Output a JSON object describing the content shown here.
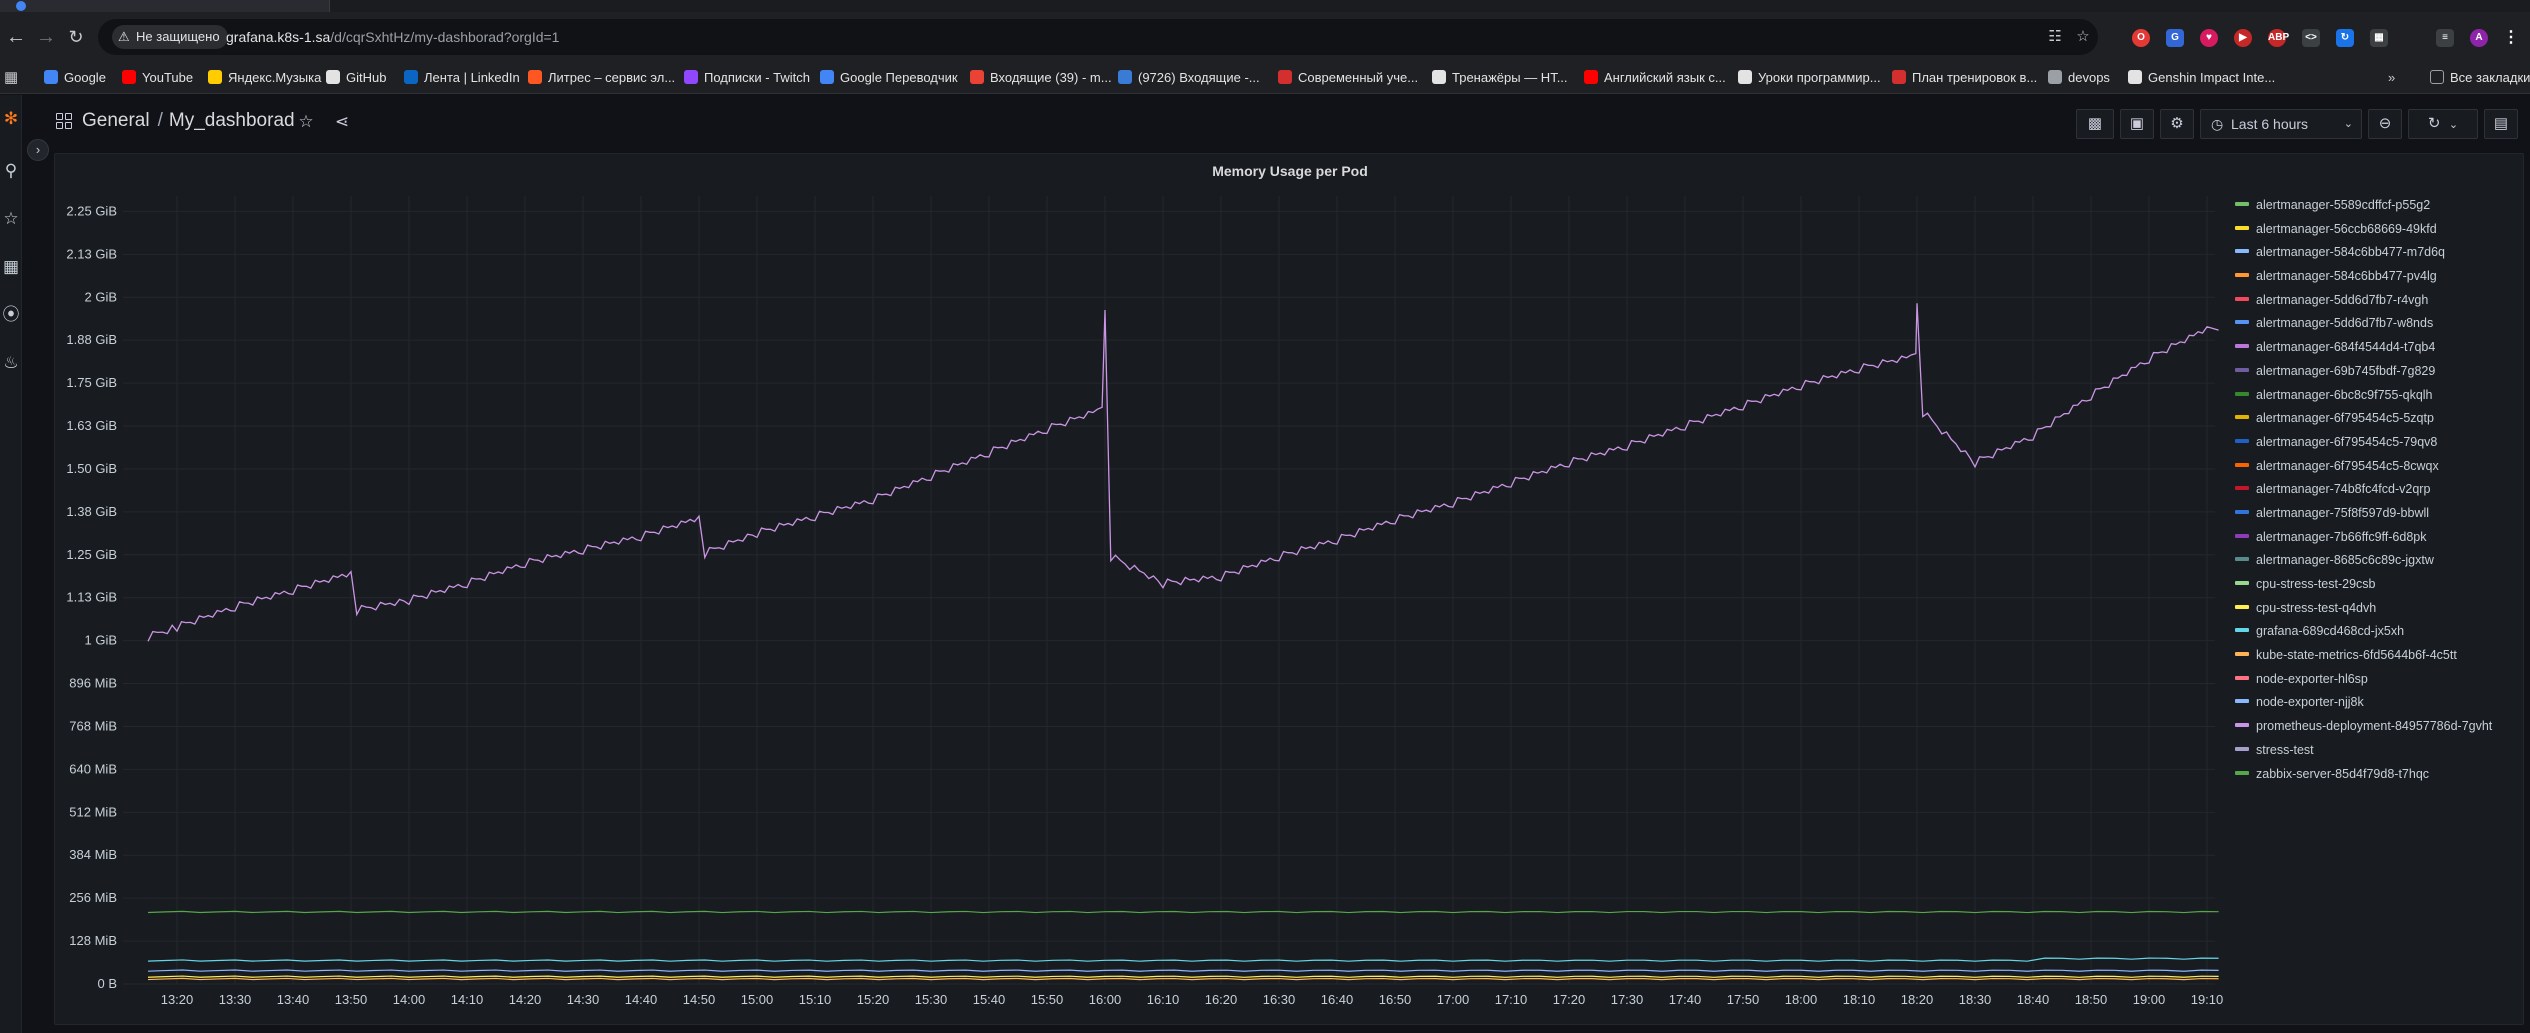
{
  "browser": {
    "insecure_label": "Не защищено",
    "url_host": "grafana.k8s-1.sa",
    "url_path": "/d/cqrSxhtHz/my-dashborad?orgId=1"
  },
  "bookmarks": {
    "items": [
      {
        "label": "Google",
        "color": "#4285f4"
      },
      {
        "label": "YouTube",
        "color": "#ff0000"
      },
      {
        "label": "Яндекс.Музыка",
        "color": "#ffcc00"
      },
      {
        "label": "GitHub",
        "color": "#e3e3e3"
      },
      {
        "label": "Лента | LinkedIn",
        "color": "#0a66c2"
      },
      {
        "label": "Литрес – сервис эл...",
        "color": "#ff5722"
      },
      {
        "label": "Подписки - Twitch",
        "color": "#9146ff"
      },
      {
        "label": "Google Переводчик",
        "color": "#4285f4"
      },
      {
        "label": "Входящие (39) - m...",
        "color": "#ea4335"
      },
      {
        "label": "(9726) Входящие -...",
        "color": "#3a7bd5"
      },
      {
        "label": "Современный уче...",
        "color": "#d32f2f"
      },
      {
        "label": "Тренажёры — HT...",
        "color": "#e3e3e3"
      },
      {
        "label": "Английский язык с...",
        "color": "#ff0000"
      },
      {
        "label": "Уроки программир...",
        "color": "#e3e3e3"
      },
      {
        "label": "План тренировок в...",
        "color": "#d32f2f"
      },
      {
        "label": "devops",
        "color": "#9aa0a6"
      },
      {
        "label": "Genshin Impact Inte...",
        "color": "#e3e3e3"
      }
    ],
    "all_bookmarks": "Все закладки"
  },
  "dashboard": {
    "folder": "General",
    "title": "My_dashborad",
    "time_range": "Last 6 hours"
  },
  "panel": {
    "title": "Memory Usage per Pod"
  },
  "chart_data": {
    "type": "line",
    "title": "Memory Usage per Pod",
    "y_ticks": [
      "0 B",
      "128 MiB",
      "256 MiB",
      "384 MiB",
      "512 MiB",
      "640 MiB",
      "768 MiB",
      "896 MiB",
      "1 GiB",
      "1.13 GiB",
      "1.25 GiB",
      "1.38 GiB",
      "1.50 GiB",
      "1.63 GiB",
      "1.75 GiB",
      "1.88 GiB",
      "2 GiB",
      "2.13 GiB",
      "2.25 GiB"
    ],
    "ylim_mib": [
      0,
      2350
    ],
    "x_ticks": [
      "13:20",
      "13:30",
      "13:40",
      "13:50",
      "14:00",
      "14:10",
      "14:20",
      "14:30",
      "14:40",
      "14:50",
      "15:00",
      "15:10",
      "15:20",
      "15:30",
      "15:40",
      "15:50",
      "16:00",
      "16:10",
      "16:20",
      "16:30",
      "16:40",
      "16:50",
      "17:00",
      "17:10",
      "17:20",
      "17:30",
      "17:40",
      "17:50",
      "18:00",
      "18:10",
      "18:20",
      "18:30",
      "18:40",
      "18:50",
      "19:00",
      "19:10"
    ],
    "xlim_minutes": [
      13.1,
      19.2
    ],
    "grid": true,
    "legend_position": "right",
    "series": [
      {
        "name": "alertmanager-5589cdffcf-p55g2",
        "color": "#73bf69"
      },
      {
        "name": "alertmanager-56ccb68669-49kfd",
        "color": "#fade2a"
      },
      {
        "name": "alertmanager-584c6bb477-m7d6q",
        "color": "#8ab8ff"
      },
      {
        "name": "alertmanager-584c6bb477-pv4lg",
        "color": "#ff9830"
      },
      {
        "name": "alertmanager-5dd6d7fb7-r4vgh",
        "color": "#f2495c"
      },
      {
        "name": "alertmanager-5dd6d7fb7-w8nds",
        "color": "#5794f2"
      },
      {
        "name": "alertmanager-684f4544d4-t7qb4",
        "color": "#b877d9"
      },
      {
        "name": "alertmanager-69b745fbdf-7g829",
        "color": "#705da0"
      },
      {
        "name": "alertmanager-6bc8c9f755-qkqlh",
        "color": "#37872d"
      },
      {
        "name": "alertmanager-6f795454c5-5zqtp",
        "color": "#e0b400"
      },
      {
        "name": "alertmanager-6f795454c5-79qv8",
        "color": "#1f60c4"
      },
      {
        "name": "alertmanager-6f795454c5-8cwqx",
        "color": "#fa6400"
      },
      {
        "name": "alertmanager-74b8fc4fcd-v2qrp",
        "color": "#c4162a"
      },
      {
        "name": "alertmanager-75f8f597d9-bbwll",
        "color": "#3274d9"
      },
      {
        "name": "alertmanager-7b66ffc9ff-6d8pk",
        "color": "#8f3bb8"
      },
      {
        "name": "alertmanager-8685c6c89c-jgxtw",
        "color": "#588c8c"
      },
      {
        "name": "cpu-stress-test-29csb",
        "color": "#96d98d"
      },
      {
        "name": "cpu-stress-test-q4dvh",
        "color": "#ffee52"
      },
      {
        "name": "grafana-689cd468cd-jx5xh",
        "color": "#64d6e8"
      },
      {
        "name": "kube-state-metrics-6fd5644b6f-4c5tt",
        "color": "#ffb357"
      },
      {
        "name": "node-exporter-hl6sp",
        "color": "#ff7383"
      },
      {
        "name": "node-exporter-njj8k",
        "color": "#8ab8ff"
      },
      {
        "name": "prometheus-deployment-84957786d-7gvht",
        "color": "#ca95e5"
      },
      {
        "name": "stress-test",
        "color": "#a69fcd"
      },
      {
        "name": "zabbix-server-85d4f79d8-t7hqc",
        "color": "#56a64b"
      }
    ],
    "main_series": {
      "name": "prometheus-deployment-84957786d-7gvht",
      "x_minutes_after_13h": [
        15,
        20,
        30,
        40,
        50,
        51,
        60,
        70,
        80,
        90,
        100,
        110,
        111,
        120,
        130,
        140,
        150,
        160,
        170,
        179.5,
        180,
        181,
        190,
        200,
        210,
        220,
        230,
        240,
        250,
        260,
        270,
        280,
        290,
        300,
        310,
        319.8,
        320,
        321,
        330,
        340,
        350,
        360,
        370,
        372
      ],
      "y_mib": [
        1040,
        1070,
        1130,
        1180,
        1230,
        1120,
        1150,
        1200,
        1260,
        1300,
        1340,
        1395,
        1290,
        1350,
        1400,
        1450,
        1520,
        1590,
        1660,
        1720,
        2010,
        1280,
        1200,
        1220,
        1280,
        1330,
        1390,
        1440,
        1500,
        1560,
        1610,
        1670,
        1730,
        1790,
        1840,
        1880,
        2030,
        1710,
        1560,
        1640,
        1760,
        1870,
        1960,
        1950
      ]
    },
    "low_series": [
      {
        "name": "zabbix-server-85d4f79d8-t7hqc",
        "y_mib": 215
      },
      {
        "name": "grafana-689cd468cd-jx5xh",
        "y_mib": 70
      },
      {
        "name": "node-exporter-njj8k",
        "y_mib": 40
      },
      {
        "name": "cpu-stress-test-q4dvh",
        "y_mib": 22
      },
      {
        "name": "kube-state-metrics-6fd5644b6f-4c5tt",
        "y_mib": 15
      }
    ]
  }
}
